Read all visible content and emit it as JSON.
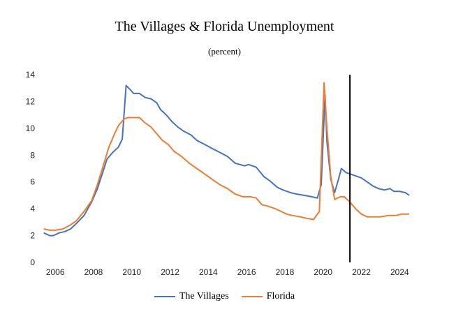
{
  "chart_data": {
    "type": "line",
    "title": "The Villages & Florida Unemployment",
    "subtitle": "(percent)",
    "xlabel": "",
    "ylabel": "",
    "xlim": [
      2005.3,
      2024.9
    ],
    "ylim": [
      0,
      14
    ],
    "yticks": [
      0,
      2,
      4,
      6,
      8,
      10,
      12,
      14
    ],
    "xticks": [
      2006,
      2008,
      2010,
      2012,
      2014,
      2016,
      2018,
      2020,
      2022,
      2024
    ],
    "vertical_marker_x": 2021.4,
    "legend_position": "bottom-center",
    "grid": false,
    "series": [
      {
        "name": "The Villages",
        "color": "#4472C4",
        "points": [
          [
            2005.4,
            2.2
          ],
          [
            2005.7,
            2.0
          ],
          [
            2005.9,
            2.0
          ],
          [
            2006.2,
            2.2
          ],
          [
            2006.5,
            2.3
          ],
          [
            2006.8,
            2.5
          ],
          [
            2007.1,
            2.9
          ],
          [
            2007.5,
            3.5
          ],
          [
            2007.9,
            4.5
          ],
          [
            2008.2,
            5.5
          ],
          [
            2008.5,
            6.8
          ],
          [
            2008.7,
            7.7
          ],
          [
            2009.0,
            8.2
          ],
          [
            2009.3,
            8.6
          ],
          [
            2009.5,
            9.2
          ],
          [
            2009.7,
            13.2
          ],
          [
            2009.9,
            12.9
          ],
          [
            2010.1,
            12.6
          ],
          [
            2010.4,
            12.6
          ],
          [
            2010.7,
            12.3
          ],
          [
            2011.0,
            12.2
          ],
          [
            2011.3,
            11.9
          ],
          [
            2011.5,
            11.4
          ],
          [
            2011.8,
            11.0
          ],
          [
            2012.1,
            10.5
          ],
          [
            2012.4,
            10.1
          ],
          [
            2012.7,
            9.8
          ],
          [
            2013.1,
            9.5
          ],
          [
            2013.4,
            9.1
          ],
          [
            2013.8,
            8.8
          ],
          [
            2014.2,
            8.5
          ],
          [
            2014.6,
            8.2
          ],
          [
            2015.0,
            7.9
          ],
          [
            2015.4,
            7.4
          ],
          [
            2015.9,
            7.2
          ],
          [
            2016.1,
            7.3
          ],
          [
            2016.5,
            7.1
          ],
          [
            2016.9,
            6.4
          ],
          [
            2017.2,
            6.1
          ],
          [
            2017.6,
            5.6
          ],
          [
            2017.9,
            5.4
          ],
          [
            2018.3,
            5.2
          ],
          [
            2018.6,
            5.1
          ],
          [
            2019.0,
            5.0
          ],
          [
            2019.4,
            4.9
          ],
          [
            2019.7,
            4.8
          ],
          [
            2019.9,
            5.8
          ],
          [
            2020.1,
            12.5
          ],
          [
            2020.2,
            9.0
          ],
          [
            2020.4,
            6.2
          ],
          [
            2020.6,
            5.2
          ],
          [
            2020.8,
            6.2
          ],
          [
            2020.95,
            7.0
          ],
          [
            2021.2,
            6.7
          ],
          [
            2021.6,
            6.5
          ],
          [
            2022.0,
            6.3
          ],
          [
            2022.3,
            6.0
          ],
          [
            2022.6,
            5.7
          ],
          [
            2022.9,
            5.5
          ],
          [
            2023.2,
            5.4
          ],
          [
            2023.5,
            5.5
          ],
          [
            2023.7,
            5.3
          ],
          [
            2024.0,
            5.3
          ],
          [
            2024.3,
            5.2
          ],
          [
            2024.5,
            5.0
          ]
        ]
      },
      {
        "name": "Florida",
        "color": "#ED7D31",
        "points": [
          [
            2005.4,
            2.5
          ],
          [
            2005.7,
            2.4
          ],
          [
            2006.0,
            2.4
          ],
          [
            2006.4,
            2.5
          ],
          [
            2006.8,
            2.8
          ],
          [
            2007.1,
            3.1
          ],
          [
            2007.5,
            3.8
          ],
          [
            2007.9,
            4.6
          ],
          [
            2008.2,
            5.8
          ],
          [
            2008.5,
            7.2
          ],
          [
            2008.8,
            8.6
          ],
          [
            2009.1,
            9.6
          ],
          [
            2009.3,
            10.2
          ],
          [
            2009.6,
            10.7
          ],
          [
            2009.8,
            10.8
          ],
          [
            2010.1,
            10.8
          ],
          [
            2010.4,
            10.8
          ],
          [
            2010.7,
            10.4
          ],
          [
            2011.0,
            10.1
          ],
          [
            2011.3,
            9.6
          ],
          [
            2011.6,
            9.1
          ],
          [
            2011.9,
            8.8
          ],
          [
            2012.2,
            8.3
          ],
          [
            2012.6,
            7.9
          ],
          [
            2013.0,
            7.4
          ],
          [
            2013.4,
            7.0
          ],
          [
            2013.8,
            6.6
          ],
          [
            2014.2,
            6.2
          ],
          [
            2014.6,
            5.8
          ],
          [
            2015.0,
            5.5
          ],
          [
            2015.4,
            5.1
          ],
          [
            2015.8,
            4.9
          ],
          [
            2016.2,
            4.9
          ],
          [
            2016.5,
            4.8
          ],
          [
            2016.8,
            4.3
          ],
          [
            2017.1,
            4.2
          ],
          [
            2017.5,
            4.0
          ],
          [
            2017.8,
            3.8
          ],
          [
            2018.1,
            3.6
          ],
          [
            2018.4,
            3.5
          ],
          [
            2018.8,
            3.4
          ],
          [
            2019.1,
            3.3
          ],
          [
            2019.5,
            3.2
          ],
          [
            2019.8,
            3.8
          ],
          [
            2020.05,
            13.4
          ],
          [
            2020.2,
            10.0
          ],
          [
            2020.4,
            6.4
          ],
          [
            2020.6,
            4.7
          ],
          [
            2020.9,
            4.9
          ],
          [
            2021.1,
            4.9
          ],
          [
            2021.4,
            4.5
          ],
          [
            2021.7,
            4.0
          ],
          [
            2022.0,
            3.6
          ],
          [
            2022.3,
            3.4
          ],
          [
            2022.7,
            3.4
          ],
          [
            2023.0,
            3.4
          ],
          [
            2023.4,
            3.5
          ],
          [
            2023.8,
            3.5
          ],
          [
            2024.1,
            3.6
          ],
          [
            2024.5,
            3.6
          ]
        ]
      }
    ]
  }
}
